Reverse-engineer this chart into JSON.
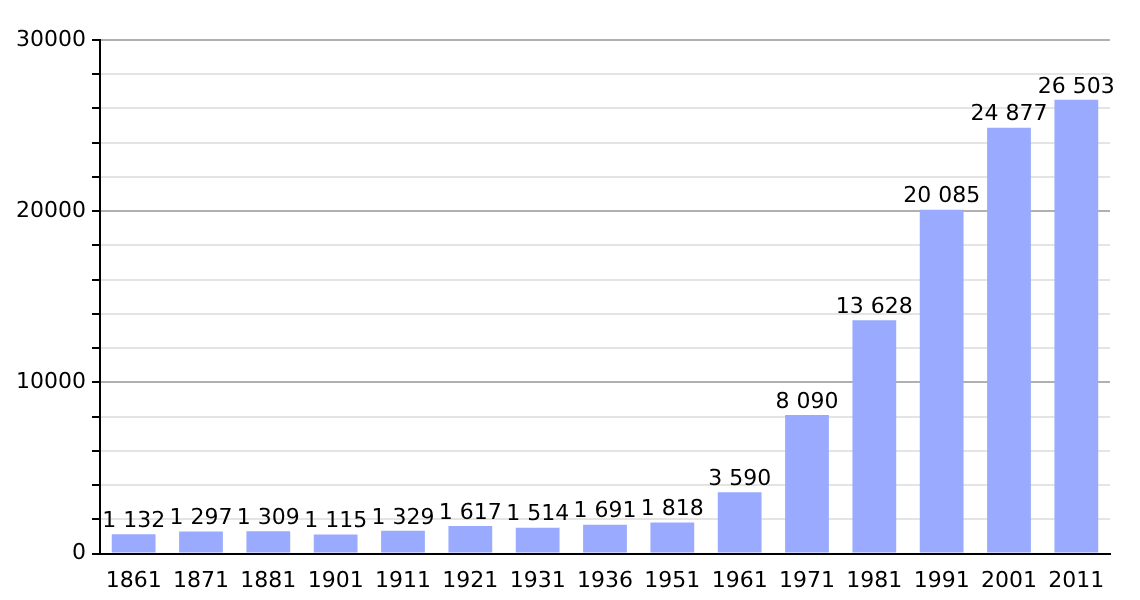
{
  "chart_data": {
    "type": "bar",
    "categories": [
      "1861",
      "1871",
      "1881",
      "1901",
      "1911",
      "1921",
      "1931",
      "1936",
      "1951",
      "1961",
      "1971",
      "1981",
      "1991",
      "2001",
      "2011"
    ],
    "values": [
      1132,
      1297,
      1309,
      1115,
      1329,
      1617,
      1514,
      1691,
      1818,
      3590,
      8090,
      13628,
      20085,
      24877,
      26503
    ],
    "value_labels": [
      "1 132",
      "1 297",
      "1 309",
      "1 115",
      "1 329",
      "1 617",
      "1 514",
      "1 691",
      "1 818",
      "3 590",
      "8 090",
      "13 628",
      "20 085",
      "24 877",
      "26 503"
    ],
    "color": "#99aaff",
    "ylim": [
      0,
      30000
    ],
    "yticks": [
      0,
      {
        "value": 2000,
        "label": null
      },
      {
        "value": 4000,
        "label": null
      },
      {
        "value": 6000,
        "label": null
      },
      {
        "value": 8000,
        "label": null
      },
      10000,
      {
        "value": 12000,
        "label": null
      },
      {
        "value": 14000,
        "label": null
      },
      {
        "value": 16000,
        "label": null
      },
      {
        "value": 18000,
        "label": null
      },
      20000,
      {
        "value": 22000,
        "label": null
      },
      {
        "value": 24000,
        "label": null
      },
      {
        "value": 26000,
        "label": null
      },
      {
        "value": 28000,
        "label": null
      },
      30000
    ],
    "grid": "y"
  }
}
